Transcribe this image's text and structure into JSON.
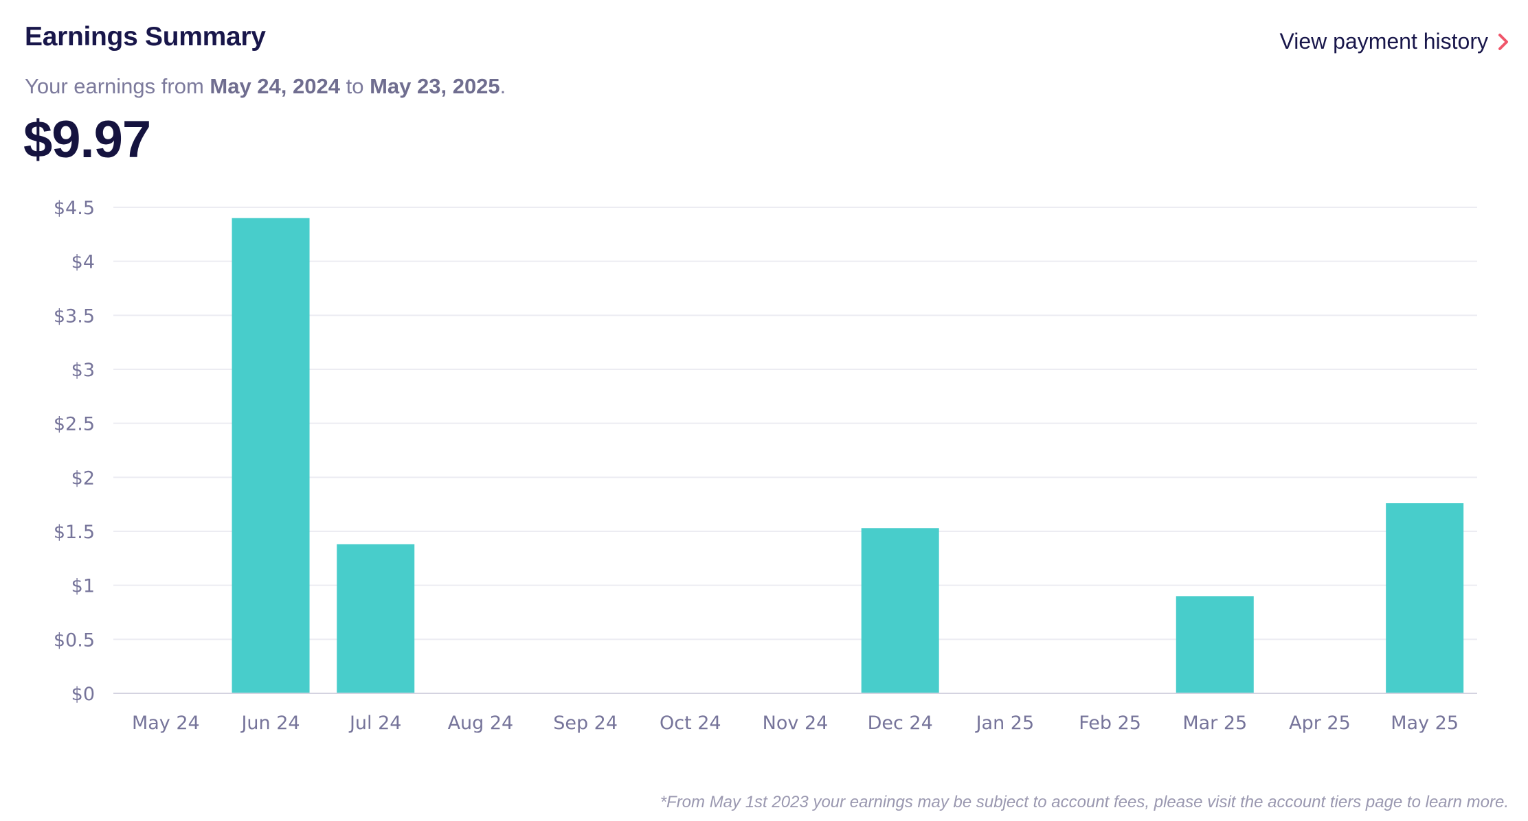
{
  "header": {
    "title": "Earnings Summary",
    "view_history_label": "View payment history",
    "chevron_icon": "chevron-right-icon"
  },
  "summary": {
    "prefix": "Your earnings from ",
    "start_date": "May 24, 2024",
    "middle": " to ",
    "end_date": "May 23, 2025",
    "suffix": ".",
    "total": "$9.97"
  },
  "chart_data": {
    "type": "bar",
    "title": "",
    "xlabel": "",
    "ylabel": "",
    "categories": [
      "May 24",
      "Jun 24",
      "Jul 24",
      "Aug 24",
      "Sep 24",
      "Oct 24",
      "Nov 24",
      "Dec 24",
      "Jan 25",
      "Feb 25",
      "Mar 25",
      "Apr 25",
      "May 25"
    ],
    "values": [
      0,
      4.4,
      1.38,
      0,
      0,
      0,
      0,
      1.53,
      0,
      0,
      0.9,
      0,
      1.76
    ],
    "ylim": [
      0,
      4.5
    ],
    "yticks": [
      "$0",
      "$0.5",
      "$1",
      "$1.5",
      "$2",
      "$2.5",
      "$3",
      "$3.5",
      "$4",
      "$4.5"
    ],
    "grid": true,
    "bar_color": "#48cdcb"
  },
  "footnote": "*From May 1st 2023 your earnings may be subject to account fees, please visit the account tiers page to learn more.",
  "colors": {
    "title": "#18164a",
    "muted_text": "#7c7a9c",
    "accent_chevron": "#f0566a",
    "gridline": "#ececf2",
    "axis": "#d4d3e0"
  }
}
